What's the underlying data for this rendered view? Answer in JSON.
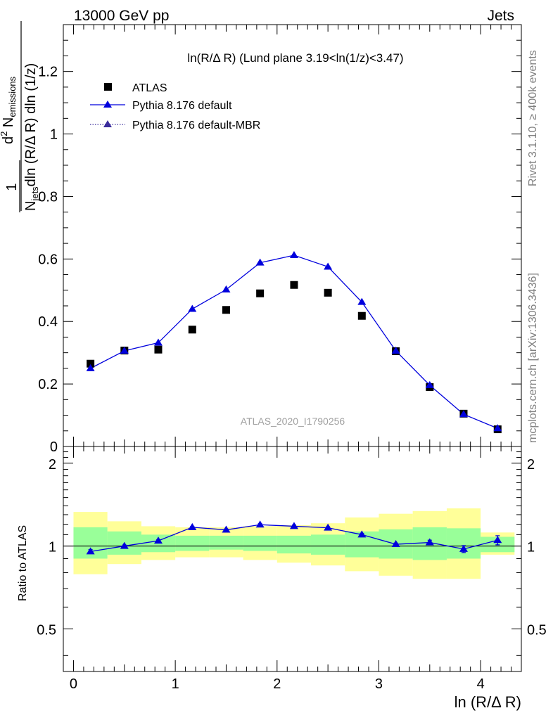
{
  "header": {
    "left": "13000 GeV pp",
    "right": "Jets"
  },
  "side_labels": {
    "top": "Rivet 3.1.10, ≥ 400k events",
    "bottom": "mcplots.cern.ch [arXiv:1306.3436]"
  },
  "chart_data": [
    {
      "type": "scatter",
      "title": "ln(R/Δ R) (Lund plane 3.19<ln(1/z)<3.47)",
      "xlabel": "ln (R/Δ R)",
      "ylabel": "1/N_jets d²N_emissions / dln(R/Δ R) dln(1/z)",
      "ylabel_parts": {
        "one": "1",
        "njets": "N",
        "njets_sub": "jets",
        "dln1": "dln (R/Δ R) dln (1/z)",
        "d2": "d",
        "d2_sup": "2",
        "n": " N",
        "n_sub": "emissions"
      },
      "watermark": "ATLAS_2020_I1790256",
      "xlim": [
        -0.1,
        4.4
      ],
      "ylim": [
        0,
        1.35
      ],
      "yticks": [
        0,
        0.2,
        0.4,
        0.6,
        0.8,
        1,
        1.2
      ],
      "ytick_labels": [
        "0",
        "0.2",
        "0.4",
        "0.6",
        "0.8",
        "1",
        "1.2"
      ],
      "legend_position": "top-left",
      "legend": [
        {
          "label": "ATLAS",
          "marker": "square",
          "color": "#000000"
        },
        {
          "label": "Pythia 8.176 default",
          "marker": "triangle",
          "color": "#0000dd",
          "line": "solid"
        },
        {
          "label": "Pythia 8.176 default-MBR",
          "marker": "triangle",
          "color": "#3a2c9c",
          "line": "dotted"
        }
      ],
      "x": [
        0.167,
        0.5,
        0.833,
        1.167,
        1.5,
        1.833,
        2.167,
        2.5,
        2.833,
        3.167,
        3.5,
        3.833,
        4.167
      ],
      "series": [
        {
          "name": "ATLAS",
          "values": [
            0.265,
            0.307,
            0.31,
            0.374,
            0.437,
            0.49,
            0.517,
            0.492,
            0.418,
            0.305,
            0.19,
            0.105,
            0.055
          ],
          "color": "#000000"
        },
        {
          "name": "Pythia 8.176 default",
          "values": [
            0.25,
            0.306,
            0.332,
            0.44,
            0.502,
            0.588,
            0.612,
            0.575,
            0.462,
            0.306,
            0.196,
            0.103,
            0.058
          ],
          "color": "#0000dd"
        }
      ]
    },
    {
      "type": "scatter",
      "xlabel": "ln (R/Δ R)",
      "ylabel": "Ratio to ATLAS",
      "xlim": [
        -0.1,
        4.4
      ],
      "ylim": [
        0.35,
        2.3
      ],
      "xticks": [
        0,
        1,
        2,
        3,
        4
      ],
      "xtick_labels": [
        "0",
        "1",
        "2",
        "3",
        "4"
      ],
      "yticks": [
        0.5,
        1,
        2
      ],
      "ytick_labels": [
        "0.5",
        "1",
        "2"
      ],
      "x_edges": [
        0,
        0.333,
        0.667,
        1,
        1.333,
        1.667,
        2,
        2.333,
        2.667,
        3,
        3.333,
        3.667,
        4,
        4.333
      ],
      "band_inner": [
        [
          0.9,
          1.17
        ],
        [
          0.93,
          1.13
        ],
        [
          0.95,
          1.1
        ],
        [
          0.96,
          1.09
        ],
        [
          0.97,
          1.09
        ],
        [
          0.96,
          1.09
        ],
        [
          0.94,
          1.09
        ],
        [
          0.93,
          1.1
        ],
        [
          0.91,
          1.13
        ],
        [
          0.9,
          1.15
        ],
        [
          0.89,
          1.17
        ],
        [
          0.9,
          1.16
        ],
        [
          0.95,
          1.08
        ]
      ],
      "band_outer": [
        [
          0.79,
          1.33
        ],
        [
          0.86,
          1.23
        ],
        [
          0.89,
          1.18
        ],
        [
          0.91,
          1.17
        ],
        [
          0.91,
          1.17
        ],
        [
          0.89,
          1.18
        ],
        [
          0.87,
          1.19
        ],
        [
          0.85,
          1.21
        ],
        [
          0.81,
          1.27
        ],
        [
          0.78,
          1.31
        ],
        [
          0.76,
          1.34
        ],
        [
          0.76,
          1.37
        ],
        [
          0.93,
          1.12
        ]
      ],
      "x": [
        0.167,
        0.5,
        0.833,
        1.167,
        1.5,
        1.833,
        2.167,
        2.5,
        2.833,
        3.167,
        3.5,
        3.833,
        4.167
      ],
      "series": [
        {
          "name": "Pythia 8.176 default",
          "values": [
            0.955,
            1.0,
            1.045,
            1.17,
            1.145,
            1.195,
            1.18,
            1.165,
            1.1,
            1.015,
            1.03,
            0.975,
            1.05
          ],
          "errors": [
            0.015,
            0.008,
            0.008,
            0.008,
            0.008,
            0.01,
            0.012,
            0.01,
            0.01,
            0.01,
            0.02,
            0.028,
            0.04
          ],
          "color": "#0000dd"
        }
      ],
      "reference_line": 1,
      "colors": {
        "inner_band": "#99ff99",
        "outer_band": "#ffff99"
      }
    }
  ]
}
